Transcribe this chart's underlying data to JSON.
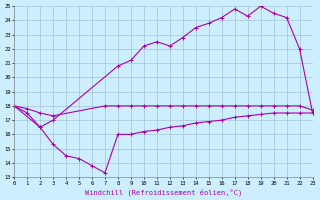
{
  "xlabel": "Windchill (Refroidissement éolien,°C)",
  "bg_color": "#cceeff",
  "line_color": "#aa00aa",
  "grid_color": "#99bbcc",
  "ylim": [
    13,
    25
  ],
  "xlim": [
    0,
    23
  ],
  "yticks": [
    13,
    14,
    15,
    16,
    17,
    18,
    19,
    20,
    21,
    22,
    23,
    24,
    25
  ],
  "xticks": [
    0,
    1,
    2,
    3,
    4,
    5,
    6,
    7,
    8,
    9,
    10,
    11,
    12,
    13,
    14,
    15,
    16,
    17,
    18,
    19,
    20,
    21,
    22,
    23
  ],
  "line1_x": [
    0,
    2,
    3,
    8,
    9,
    10,
    11,
    12,
    13,
    14,
    15,
    16,
    17,
    18,
    19,
    20,
    21,
    22,
    23
  ],
  "line1_y": [
    18.0,
    16.5,
    17.0,
    20.8,
    21.2,
    22.2,
    22.5,
    22.2,
    22.8,
    23.5,
    23.8,
    24.2,
    24.8,
    24.3,
    25.0,
    24.5,
    24.2,
    22.0,
    17.5
  ],
  "line2_x": [
    0,
    1,
    2,
    3,
    7,
    8,
    9,
    10,
    11,
    12,
    13,
    14,
    15,
    16,
    17,
    18,
    19,
    20,
    21,
    22,
    23
  ],
  "line2_y": [
    18.0,
    17.8,
    17.5,
    17.3,
    18.0,
    18.0,
    18.0,
    18.0,
    18.0,
    18.0,
    18.0,
    18.0,
    18.0,
    18.0,
    18.0,
    18.0,
    18.0,
    18.0,
    18.0,
    18.0,
    17.7
  ],
  "line3_x": [
    0,
    1,
    2,
    3,
    4,
    5,
    6,
    7,
    8,
    9,
    10,
    11,
    12,
    13,
    14,
    15,
    16,
    17,
    18,
    19,
    20,
    21,
    22,
    23
  ],
  "line3_y": [
    18.0,
    17.5,
    16.5,
    15.3,
    14.5,
    14.3,
    13.8,
    13.3,
    16.0,
    16.0,
    16.2,
    16.3,
    16.5,
    16.6,
    16.8,
    16.9,
    17.0,
    17.2,
    17.3,
    17.4,
    17.5,
    17.5,
    17.5,
    17.5
  ],
  "markersize": 3,
  "linewidth": 0.8
}
